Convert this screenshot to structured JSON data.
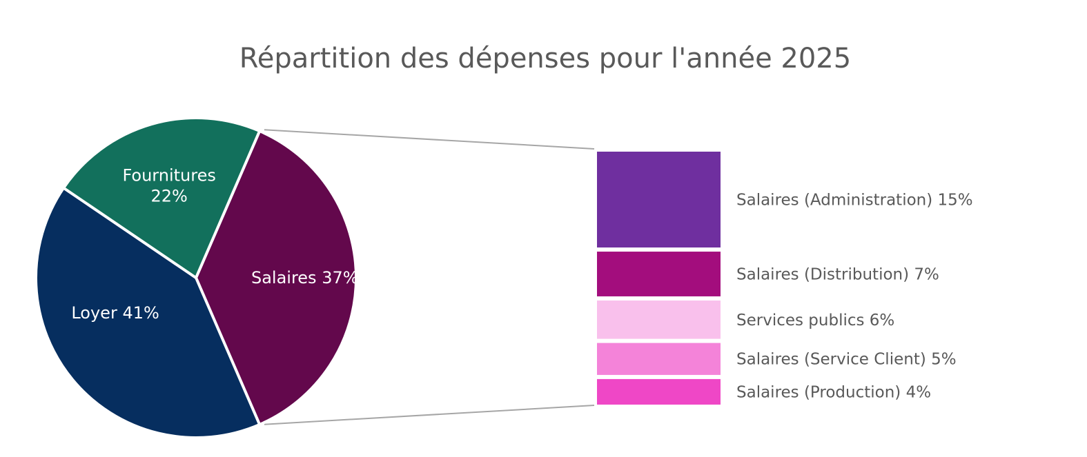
{
  "chart_data": {
    "type": "pie",
    "subtype": "bar-of-pie",
    "title": "Répartition des dépenses pour l'année 2025",
    "pie": {
      "slices": [
        {
          "name": "Salaires",
          "value": 37,
          "label": "Salaires 37%",
          "label_lines": [
            "Salaires 37%"
          ],
          "color": "#63084C"
        },
        {
          "name": "Loyer",
          "value": 41,
          "label": "Loyer 41%",
          "label_lines": [
            "Loyer 41%"
          ],
          "color": "#062E5F"
        },
        {
          "name": "Fournitures",
          "value": 22,
          "label": "Fournitures 22%",
          "label_lines": [
            "Fournitures",
            "22%"
          ],
          "color": "#12705C"
        }
      ]
    },
    "breakdown": {
      "parent": "Salaires",
      "items": [
        {
          "name": "Salaires (Administration)",
          "value": 15,
          "label": "Salaires (Administration) 15%",
          "color": "#6F2F9F"
        },
        {
          "name": "Salaires (Distribution)",
          "value": 7,
          "label": "Salaires (Distribution) 7%",
          "color": "#A30D7D"
        },
        {
          "name": "Services publics",
          "value": 6,
          "label": "Services publics 6%",
          "color": "#F9C0EC"
        },
        {
          "name": "Salaires (Service Client)",
          "value": 5,
          "label": "Salaires (Service Client) 5%",
          "color": "#F483D9"
        },
        {
          "name": "Salaires (Production)",
          "value": 4,
          "label": "Salaires (Production) 4%",
          "color": "#EF47C6"
        }
      ]
    },
    "connector_color": "#A6A6A6",
    "legend": "none"
  }
}
